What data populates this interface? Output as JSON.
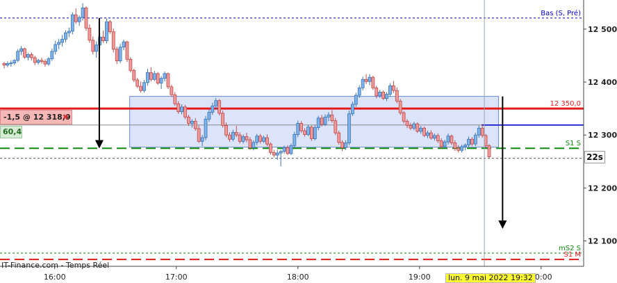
{
  "chart_data": {
    "type": "candlestick",
    "source_label": "IT-Finance.com - Temps Réel",
    "cursor_date": "lun. 9 mai 2022 19:32",
    "countdown": "22s",
    "y_axis": {
      "range": [
        12052,
        12555
      ],
      "ticks": [
        12100,
        12200,
        12300,
        12400,
        12500
      ],
      "tick_labels": [
        "12 100",
        "12 200",
        "12 300",
        "12 400",
        "12 500"
      ]
    },
    "x_axis": {
      "range": [
        "15:33",
        "20:21"
      ],
      "ticks": [
        "16:00",
        "17:00",
        "18:00",
        "19:00",
        "20:00"
      ]
    },
    "levels": [
      {
        "label": "Bas (S, Pré)",
        "value": 12521,
        "color": "#0000cc",
        "style": "dotted"
      },
      {
        "label": "12 350,0",
        "value": 12350,
        "color": "#e41a1a",
        "style": "solid-thick"
      },
      {
        "label": "S1 S",
        "value": 12275,
        "color": "#0e8a0e",
        "style": "dashed-thick"
      },
      {
        "label": "mS2 S",
        "value": 12077,
        "color": "#0e8a0e",
        "style": "dotted"
      },
      {
        "label": "S1 M",
        "value": 12065,
        "color": "#e41a1a",
        "style": "dashed-thick"
      }
    ],
    "unlabeled_levels": [
      {
        "value": 12256,
        "color": "#555555",
        "style": "dotted"
      },
      {
        "value": 12318.9,
        "color": "#888888",
        "style": "solid-thin"
      },
      {
        "value": 12318.9,
        "color": "#0000cc",
        "style": "solid"
      }
    ],
    "order": {
      "label": "-1,5 @ 12 318,9",
      "close_symbol": "✖",
      "price": 12318.9
    },
    "position_value": "60,4",
    "range_box": {
      "from": "16:37",
      "to": "19:39",
      "low": 12277,
      "high": 12373
    },
    "arrows": [
      {
        "time": "16:22",
        "from": 12521,
        "to": 12276
      },
      {
        "time": "19:41",
        "from": 12373,
        "to": 12124
      }
    ],
    "cursor_time": "19:32",
    "candles": [
      [
        12435,
        12438,
        12426,
        12432
      ],
      [
        12432,
        12439,
        12428,
        12435
      ],
      [
        12435,
        12441,
        12429,
        12436
      ],
      [
        12436,
        12443,
        12432,
        12441
      ],
      [
        12441,
        12462,
        12438,
        12458
      ],
      [
        12458,
        12468,
        12451,
        12463
      ],
      [
        12463,
        12465,
        12444,
        12447
      ],
      [
        12447,
        12455,
        12441,
        12452
      ],
      [
        12452,
        12456,
        12441,
        12446
      ],
      [
        12446,
        12450,
        12432,
        12437
      ],
      [
        12437,
        12444,
        12433,
        12441
      ],
      [
        12441,
        12446,
        12435,
        12439
      ],
      [
        12439,
        12443,
        12429,
        12434
      ],
      [
        12434,
        12447,
        12431,
        12444
      ],
      [
        12444,
        12463,
        12440,
        12458
      ],
      [
        12458,
        12478,
        12452,
        12471
      ],
      [
        12471,
        12482,
        12462,
        12475
      ],
      [
        12475,
        12489,
        12467,
        12481
      ],
      [
        12481,
        12498,
        12475,
        12493
      ],
      [
        12493,
        12503,
        12485,
        12496
      ],
      [
        12496,
        12532,
        12490,
        12527
      ],
      [
        12527,
        12539,
        12510,
        12514
      ],
      [
        12514,
        12526,
        12506,
        12522
      ],
      [
        12522,
        12549,
        12516,
        12540
      ],
      [
        12540,
        12543,
        12497,
        12502
      ],
      [
        12502,
        12509,
        12474,
        12479
      ],
      [
        12479,
        12486,
        12452,
        12458
      ],
      [
        12458,
        12477,
        12446,
        12470
      ],
      [
        12470,
        12492,
        12463,
        12485
      ],
      [
        12485,
        12497,
        12474,
        12478
      ],
      [
        12478,
        12520,
        12473,
        12514
      ],
      [
        12514,
        12517,
        12491,
        12495
      ],
      [
        12495,
        12501,
        12456,
        12462
      ],
      [
        12462,
        12467,
        12434,
        12440
      ],
      [
        12440,
        12472,
        12436,
        12466
      ],
      [
        12466,
        12480,
        12460,
        12476
      ],
      [
        12476,
        12478,
        12438,
        12443
      ],
      [
        12443,
        12447,
        12418,
        12422
      ],
      [
        12422,
        12425,
        12400,
        12404
      ],
      [
        12404,
        12408,
        12389,
        12392
      ],
      [
        12392,
        12401,
        12380,
        12384
      ],
      [
        12384,
        12404,
        12380,
        12399
      ],
      [
        12399,
        12425,
        12393,
        12418
      ],
      [
        12418,
        12428,
        12401,
        12405
      ],
      [
        12405,
        12421,
        12402,
        12416
      ],
      [
        12416,
        12419,
        12395,
        12398
      ],
      [
        12398,
        12411,
        12387,
        12407
      ],
      [
        12407,
        12420,
        12401,
        12416
      ],
      [
        12416,
        12418,
        12387,
        12391
      ],
      [
        12391,
        12395,
        12372,
        12376
      ],
      [
        12376,
        12381,
        12355,
        12359
      ],
      [
        12359,
        12364,
        12340,
        12344
      ],
      [
        12344,
        12358,
        12339,
        12353
      ],
      [
        12353,
        12357,
        12330,
        12334
      ],
      [
        12334,
        12338,
        12317,
        12322
      ],
      [
        12322,
        12330,
        12314,
        12326
      ],
      [
        12326,
        12332,
        12308,
        12312
      ],
      [
        12312,
        12318,
        12285,
        12288
      ],
      [
        12288,
        12300,
        12279,
        12295
      ],
      [
        12295,
        12336,
        12290,
        12330
      ],
      [
        12330,
        12348,
        12325,
        12343
      ],
      [
        12343,
        12361,
        12338,
        12355
      ],
      [
        12355,
        12370,
        12349,
        12365
      ],
      [
        12365,
        12368,
        12337,
        12341
      ],
      [
        12341,
        12346,
        12314,
        12318
      ],
      [
        12318,
        12324,
        12296,
        12300
      ],
      [
        12300,
        12305,
        12287,
        12292
      ],
      [
        12292,
        12310,
        12288,
        12305
      ],
      [
        12305,
        12317,
        12296,
        12300
      ],
      [
        12300,
        12305,
        12284,
        12288
      ],
      [
        12288,
        12301,
        12284,
        12297
      ],
      [
        12297,
        12304,
        12286,
        12291
      ],
      [
        12291,
        12296,
        12272,
        12276
      ],
      [
        12276,
        12290,
        12271,
        12286
      ],
      [
        12286,
        12302,
        12281,
        12298
      ],
      [
        12298,
        12302,
        12284,
        12288
      ],
      [
        12288,
        12299,
        12285,
        12295
      ],
      [
        12295,
        12301,
        12279,
        12283
      ],
      [
        12283,
        12286,
        12263,
        12267
      ],
      [
        12267,
        12272,
        12258,
        12262
      ],
      [
        12262,
        12272,
        12253,
        12266
      ],
      [
        12266,
        12272,
        12241,
        12269
      ],
      [
        12269,
        12280,
        12265,
        12276
      ],
      [
        12276,
        12281,
        12262,
        12265
      ],
      [
        12265,
        12284,
        12262,
        12280
      ],
      [
        12280,
        12306,
        12276,
        12301
      ],
      [
        12301,
        12327,
        12296,
        12322
      ],
      [
        12322,
        12326,
        12304,
        12308
      ],
      [
        12308,
        12313,
        12297,
        12301
      ],
      [
        12301,
        12319,
        12298,
        12315
      ],
      [
        12315,
        12318,
        12289,
        12293
      ],
      [
        12293,
        12319,
        12290,
        12314
      ],
      [
        12314,
        12336,
        12309,
        12332
      ],
      [
        12332,
        12338,
        12316,
        12320
      ],
      [
        12320,
        12339,
        12317,
        12334
      ],
      [
        12334,
        12343,
        12326,
        12338
      ],
      [
        12338,
        12347,
        12323,
        12327
      ],
      [
        12327,
        12332,
        12300,
        12304
      ],
      [
        12304,
        12308,
        12282,
        12286
      ],
      [
        12286,
        12290,
        12270,
        12276
      ],
      [
        12276,
        12290,
        12272,
        12285
      ],
      [
        12285,
        12346,
        12281,
        12340
      ],
      [
        12340,
        12363,
        12336,
        12358
      ],
      [
        12358,
        12380,
        12353,
        12375
      ],
      [
        12375,
        12394,
        12370,
        12389
      ],
      [
        12389,
        12410,
        12384,
        12405
      ],
      [
        12405,
        12415,
        12396,
        12401
      ],
      [
        12401,
        12415,
        12394,
        12409
      ],
      [
        12409,
        12412,
        12385,
        12389
      ],
      [
        12389,
        12393,
        12369,
        12374
      ],
      [
        12374,
        12385,
        12370,
        12381
      ],
      [
        12381,
        12384,
        12366,
        12369
      ],
      [
        12369,
        12381,
        12364,
        12377
      ],
      [
        12377,
        12398,
        12372,
        12393
      ],
      [
        12393,
        12402,
        12379,
        12384
      ],
      [
        12384,
        12390,
        12360,
        12364
      ],
      [
        12364,
        12368,
        12338,
        12342
      ],
      [
        12342,
        12345,
        12322,
        12326
      ],
      [
        12326,
        12330,
        12313,
        12318
      ],
      [
        12318,
        12323,
        12309,
        12313
      ],
      [
        12313,
        12325,
        12309,
        12321
      ],
      [
        12321,
        12324,
        12304,
        12307
      ],
      [
        12307,
        12317,
        12302,
        12313
      ],
      [
        12313,
        12316,
        12296,
        12299
      ],
      [
        12299,
        12308,
        12294,
        12304
      ],
      [
        12304,
        12309,
        12291,
        12294
      ],
      [
        12294,
        12303,
        12290,
        12299
      ],
      [
        12299,
        12303,
        12285,
        12289
      ],
      [
        12289,
        12294,
        12274,
        12278
      ],
      [
        12278,
        12291,
        12274,
        12287
      ],
      [
        12287,
        12303,
        12282,
        12298
      ],
      [
        12298,
        12301,
        12281,
        12285
      ],
      [
        12285,
        12290,
        12270,
        12275
      ],
      [
        12275,
        12281,
        12267,
        12271
      ],
      [
        12271,
        12282,
        12267,
        12278
      ],
      [
        12278,
        12284,
        12271,
        12281
      ],
      [
        12281,
        12297,
        12277,
        12292
      ],
      [
        12292,
        12296,
        12279,
        12283
      ],
      [
        12283,
        12304,
        12279,
        12300
      ],
      [
        12300,
        12318,
        12295,
        12313
      ],
      [
        12313,
        12321,
        12295,
        12299
      ],
      [
        12299,
        12302,
        12276,
        12280
      ],
      [
        12280,
        12283,
        12255,
        12259
      ]
    ]
  }
}
